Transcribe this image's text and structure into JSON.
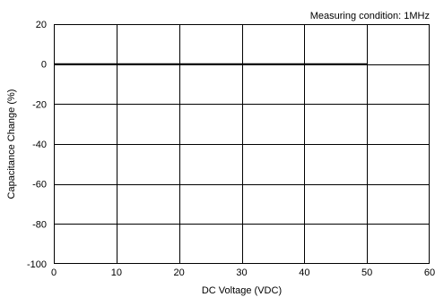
{
  "chart_data": {
    "type": "line",
    "title": "",
    "annotation": "Measuring condition: 1MHz",
    "xlabel": "DC Voltage (VDC)",
    "ylabel": "Capacitance Change (%)",
    "xlim": [
      0,
      60
    ],
    "ylim": [
      -100,
      20
    ],
    "x_ticks": [
      0,
      10,
      20,
      30,
      40,
      50,
      60
    ],
    "y_ticks": [
      20,
      0,
      -20,
      -40,
      -60,
      -80,
      -100
    ],
    "grid": true,
    "series": [
      {
        "x": [
          0,
          10,
          20,
          30,
          40,
          50
        ],
        "y": [
          0,
          0,
          0,
          0,
          0,
          0
        ]
      }
    ],
    "colors": {
      "line": "#000000",
      "grid": "#000000",
      "frame": "#000000"
    }
  }
}
